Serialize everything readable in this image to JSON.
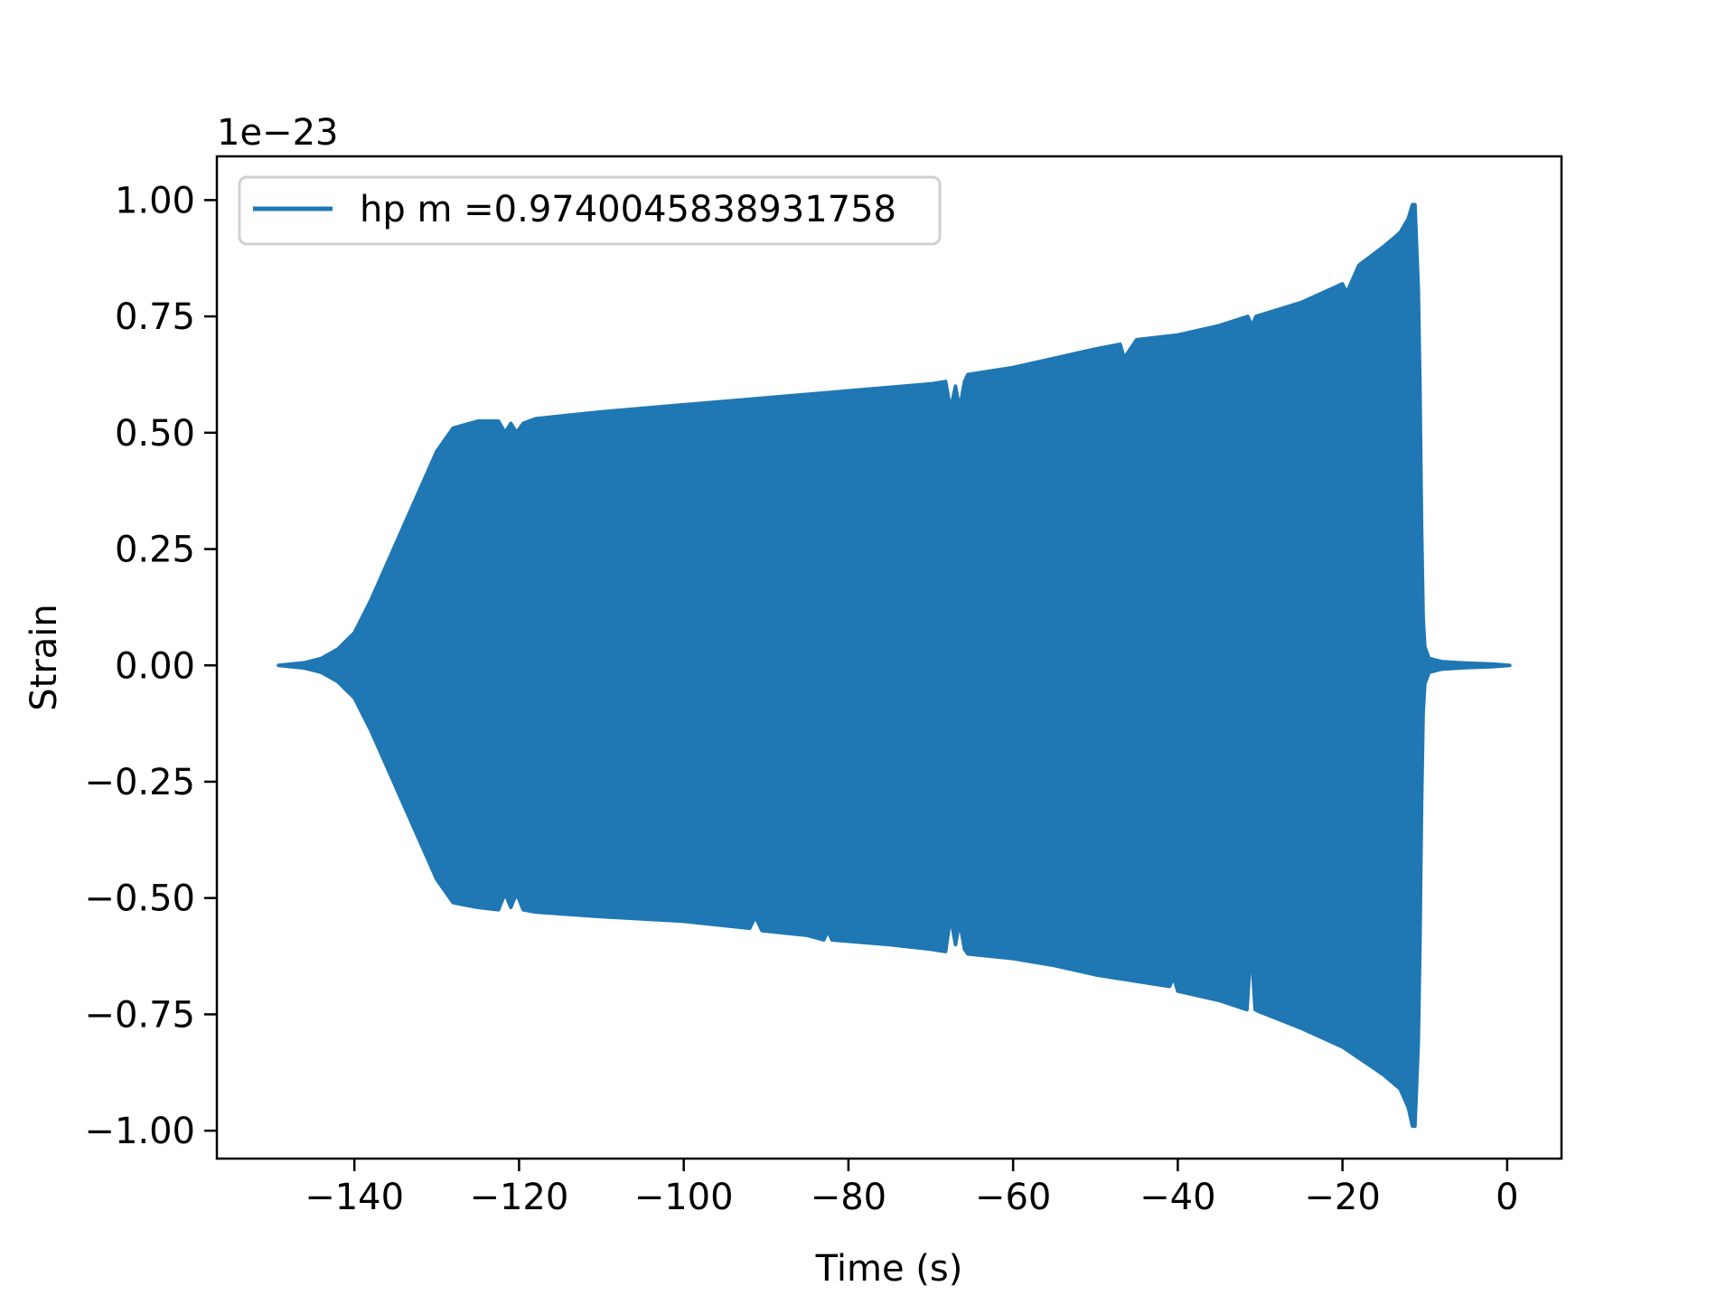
{
  "chart_data": {
    "type": "line",
    "title": "",
    "xlabel": "Time (s)",
    "ylabel": "Strain",
    "y_offset_label": "1e−23",
    "xlim": [
      -156.7,
      6.6
    ],
    "ylim": [
      -1.06,
      1.094
    ],
    "grid": false,
    "legend_placement": "upper-left",
    "series_color": "#1f77b4",
    "xticks": [
      -140,
      -120,
      -100,
      -80,
      -60,
      -40,
      -20,
      0
    ],
    "xtick_labels": [
      "−140",
      "−120",
      "−100",
      "−80",
      "−60",
      "−40",
      "−20",
      "0"
    ],
    "yticks": [
      1.0,
      0.75,
      0.5,
      0.25,
      0.0,
      -0.25,
      -0.5,
      -0.75,
      -1.0
    ],
    "ytick_labels": [
      "1.00",
      "0.75",
      "0.50",
      "0.25",
      "0.00",
      "−0.25",
      "−0.50",
      "−0.75",
      "−1.00"
    ],
    "series": [
      {
        "name": "hp m =0.9740045838931758",
        "upper_envelope": {
          "x": [
            -149.2,
            -146,
            -144,
            -142,
            -140,
            -138,
            -136,
            -134,
            -132,
            -130,
            -128,
            -125,
            -122.5,
            -121.7,
            -121,
            -120.3,
            -119.5,
            -118,
            -110,
            -100,
            -90,
            -80,
            -70,
            -68.2,
            -67.6,
            -67,
            -66.5,
            -65.9,
            -65.5,
            -60,
            -55,
            -50,
            -47,
            -46.5,
            -45,
            -40,
            -35,
            -31.5,
            -31,
            -30.5,
            -25,
            -20,
            -19.5,
            -18,
            -15,
            -13,
            -12,
            -11.5,
            -11.2,
            -10.8,
            -10.6,
            -10.4,
            -10.2,
            -10,
            -9.5,
            -8,
            -5,
            -2,
            0.3
          ],
          "y": [
            0.0,
            0.006,
            0.015,
            0.035,
            0.07,
            0.14,
            0.22,
            0.3,
            0.38,
            0.46,
            0.51,
            0.525,
            0.525,
            0.5,
            0.52,
            0.5,
            0.52,
            0.53,
            0.545,
            0.56,
            0.575,
            0.59,
            0.605,
            0.61,
            0.55,
            0.6,
            0.55,
            0.61,
            0.625,
            0.64,
            0.66,
            0.68,
            0.69,
            0.66,
            0.7,
            0.71,
            0.73,
            0.75,
            0.73,
            0.75,
            0.78,
            0.82,
            0.8,
            0.86,
            0.9,
            0.93,
            0.96,
            0.99,
            0.99,
            0.81,
            0.6,
            0.3,
            0.1,
            0.04,
            0.015,
            0.008,
            0.005,
            0.003,
            0.0
          ]
        },
        "lower_envelope": {
          "x": [
            -149.2,
            -146,
            -144,
            -142,
            -140,
            -138,
            -136,
            -134,
            -132,
            -130,
            -128,
            -125,
            -122.5,
            -121.7,
            -121,
            -120.3,
            -119.5,
            -118,
            -110,
            -100,
            -92,
            -91.3,
            -90.5,
            -85,
            -83,
            -82.5,
            -82,
            -75,
            -70,
            -68.2,
            -67.6,
            -67,
            -66.5,
            -65.9,
            -65.5,
            -60,
            -55,
            -50,
            -41,
            -40.5,
            -40,
            -35,
            -31.6,
            -31.1,
            -30.6,
            -30,
            -25,
            -20,
            -15,
            -13,
            -12,
            -11.5,
            -11.2,
            -10.8,
            -10.6,
            -10.4,
            -10.2,
            -10,
            -9.5,
            -8,
            -5,
            -2,
            0.3
          ],
          "y": [
            0.0,
            -0.006,
            -0.015,
            -0.035,
            -0.07,
            -0.14,
            -0.22,
            -0.3,
            -0.38,
            -0.46,
            -0.51,
            -0.52,
            -0.525,
            -0.49,
            -0.52,
            -0.49,
            -0.525,
            -0.53,
            -0.54,
            -0.55,
            -0.565,
            -0.54,
            -0.57,
            -0.58,
            -0.59,
            -0.57,
            -0.59,
            -0.6,
            -0.61,
            -0.615,
            -0.54,
            -0.6,
            -0.55,
            -0.61,
            -0.62,
            -0.63,
            -0.645,
            -0.665,
            -0.69,
            -0.67,
            -0.7,
            -0.72,
            -0.74,
            -0.6,
            -0.74,
            -0.745,
            -0.78,
            -0.82,
            -0.88,
            -0.91,
            -0.95,
            -0.99,
            -0.99,
            -0.81,
            -0.6,
            -0.3,
            -0.1,
            -0.04,
            -0.015,
            -0.008,
            -0.005,
            -0.003,
            0.0
          ]
        }
      }
    ]
  }
}
